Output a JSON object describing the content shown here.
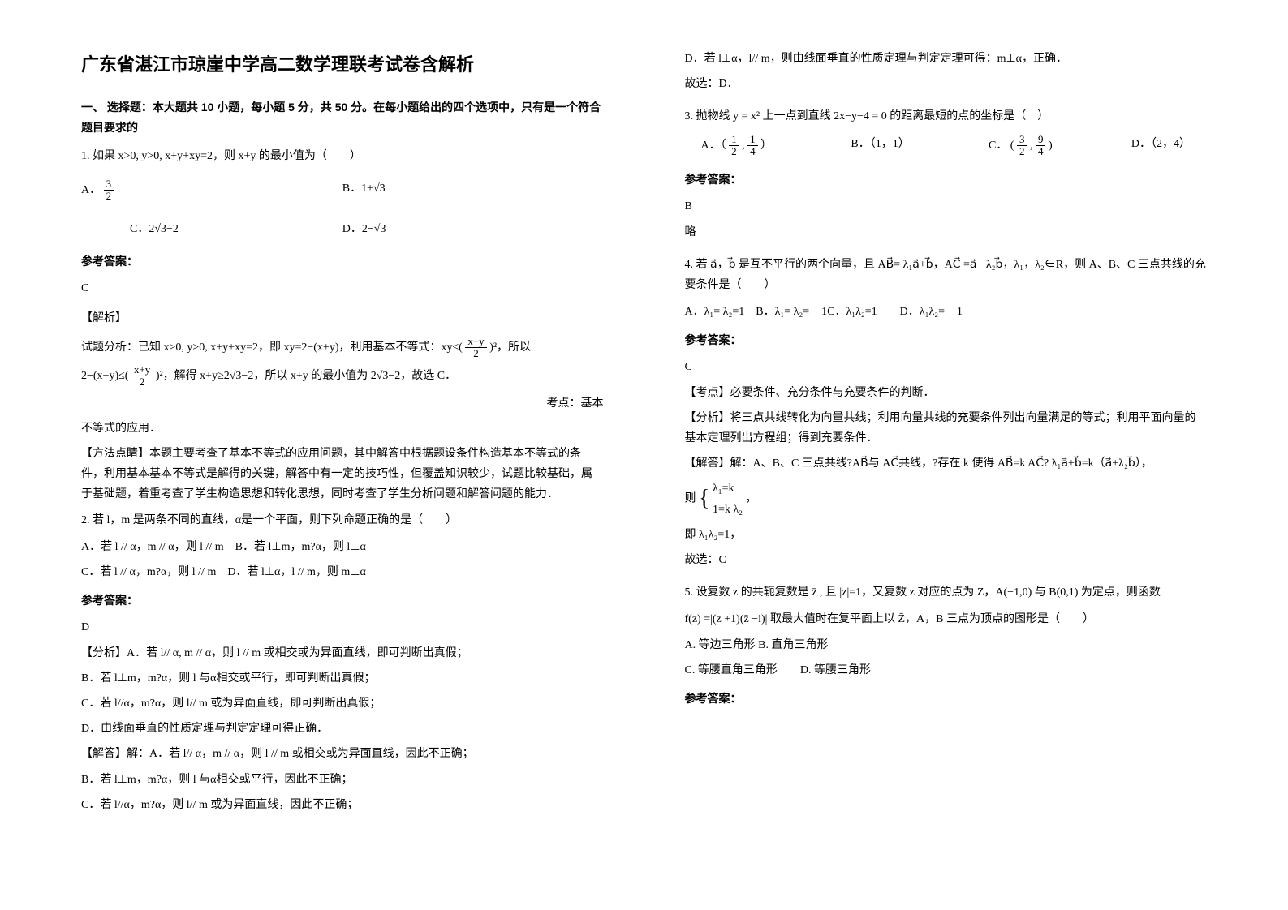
{
  "title": "广东省湛江市琼崖中学高二数学理联考试卷含解析",
  "section1": "一、 选择题：本大题共 10 小题，每小题 5 分，共 50 分。在每小题给出的四个选项中，只有是一个符合题目要求的",
  "q1": {
    "stem": "1. 如果 x>0, y>0, x+y+xy=2，则 x+y 的最小值为（　　）",
    "optA_label": "A．",
    "optA_frac_num": "3",
    "optA_frac_den": "2",
    "optB": "B．1+√3",
    "optC": "C．2√3−2",
    "optD": "D．2−√3",
    "ans_label": "参考答案：",
    "ans": "C",
    "analysis_label": "【解析】",
    "line1_a": "试题分析：已知 x>0, y>0, x+y+xy=2，即 xy=2−(x+y)，利用基本不等式：xy≤(",
    "line1_num": "x+y",
    "line1_den": "2",
    "line1_b": ")²，所以",
    "line2_a": "2−(x+y)≤(",
    "line2_num": "x+y",
    "line2_den": "2",
    "line2_b": ")²，解得 x+y≥2√3−2，所以 x+y 的最小值为 2√3−2，故选 C．",
    "kaodian": "考点：基本",
    "line3": "不等式的应用．",
    "method": "【方法点睛】本题主要考查了基本不等式的应用问题，其中解答中根据题设条件构造基本不等式的条件，利用基本基本不等式是解得的关键，解答中有一定的技巧性，但覆盖知识较少，试题比较基础，属于基础题，着重考查了学生构造思想和转化思想，同时考查了学生分析问题和解答问题的能力．"
  },
  "q2": {
    "stem": "2. 若 l，m 是两条不同的直线，α是一个平面，则下列命题正确的是（　　）",
    "optA": "A．若 l // α，m // α，则 l // m　B．若 l⊥m，m?α，则 l⊥α",
    "optC": "C．若 l // α，m?α，则 l // m　D．若 l⊥α，l // m，则 m⊥α",
    "ans_label": "参考答案：",
    "ans": "D",
    "fenxi_label": "【分析】A．若 l// α, m // α，则 l // m 或相交或为异面直线，即可判断出真假；",
    "fenxi_b": "B．若 l⊥m，m?α，则 l 与α相交或平行，即可判断出真假；",
    "fenxi_c": "C．若 l//α，m?α，则 l// m 或为异面直线，即可判断出真假；",
    "fenxi_d": "D．由线面垂直的性质定理与判定定理可得正确．",
    "jieda_label": "【解答】解：A．若 l// α，m // α，则 l // m 或相交或为异面直线，因此不正确；",
    "jieda_b": "B．若 l⊥m，m?α，则 l 与α相交或平行，因此不正确；",
    "jieda_c": "C．若 l//α，m?α，则 l// m 或为异面直线，因此不正确；"
  },
  "q2_cont": {
    "line_d": "D．若 l⊥α，l// m，则由线面垂直的性质定理与判定定理可得：m⊥α，正确．",
    "conclusion": "故选：D．"
  },
  "q3": {
    "stem": "3. 抛物线 y = x² 上一点到直线 2x−y−4 = 0 的距离最短的点的坐标是（　）",
    "optA_label": "A．（",
    "optA_num": "1",
    "optA_den1": "2",
    "optA_mid": ",",
    "optA_num2": "1",
    "optA_den2": "4",
    "optA_close": "）",
    "optB": "B．（1，1）",
    "optC_label": "C．",
    "optC_open": "(",
    "optC_num1": "3",
    "optC_den1": "2",
    "optC_mid": ",",
    "optC_num2": "9",
    "optC_den2": "4",
    "optC_close": ")",
    "optD": "D．（2，4）",
    "ans_label": "参考答案：",
    "ans": "B",
    "lue": "略"
  },
  "q4": {
    "stem": "4. 若 a⃗，b⃗ 是互不平行的两个向量，且 AB⃗= λ₁a⃗+b⃗，AC⃗ =a⃗+ λ₂b⃗，λ₁，λ₂∈R，则 A、B、C 三点共线的充要条件是（　　）",
    "opts": "A．λ₁= λ₂=1　B．λ₁= λ₂= − 1C．λ₁λ₂=1　　D．λ₁λ₂= − 1",
    "ans_label": "参考答案：",
    "ans": "C",
    "kaodian": "【考点】必要条件、充分条件与充要条件的判断．",
    "fenxi": "【分析】将三点共线转化为向量共线；利用向量共线的充要条件列出向量满足的等式；利用平面向量的基本定理列出方程组；得到充要条件．",
    "jieda": "【解答】解：A、B、C 三点共线?AB⃗与 AC⃗共线，?存在 k 使得 AB⃗=k AC⃗? λ₁a⃗+b⃗=k（a⃗+λ₂b⃗），",
    "ze": "则",
    "brace_top": "λ₁=k",
    "brace_bot": "1=k λ₂",
    "ji": "即 λ₁λ₂=1，",
    "conclusion": "故选：C"
  },
  "q5": {
    "stem": "5. 设复数 z 的共轭复数是 z̄ , 且 |z|=1，又复数 z 对应的点为 Z，A(−1,0) 与 B(0,1) 为定点，则函数",
    "formula": "f(z) =|(z +1)(z̄ −i)| 取最大值时在复平面上以 Z̄，A，B 三点为顶点的图形是（　　）",
    "optA": "A. 等边三角形 B. 直角三角形",
    "optC": "C. 等腰直角三角形　　D. 等腰三角形",
    "ans_label": "参考答案："
  }
}
